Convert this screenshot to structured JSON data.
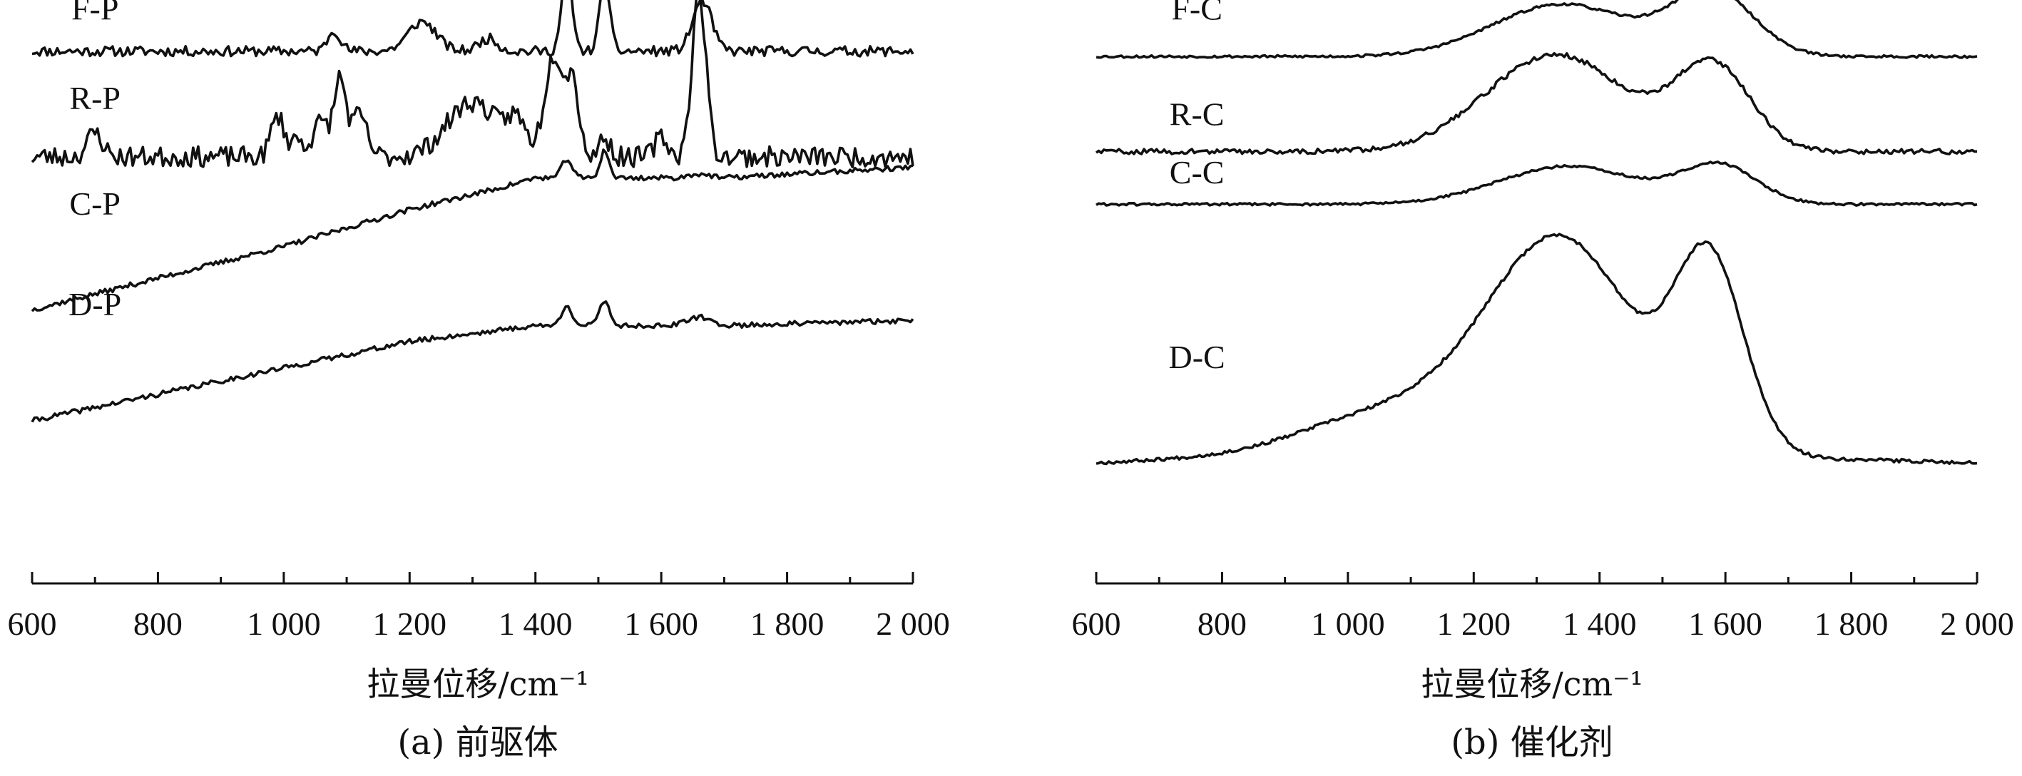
{
  "chart_data": [
    {
      "type": "line",
      "xlabel": "拉曼位移/cm⁻¹",
      "caption": "(a) 前驱体",
      "xlim": [
        600,
        2000
      ],
      "xticks": [
        600,
        800,
        1000,
        1200,
        1400,
        1600,
        1800,
        2000
      ],
      "xtick_labels": [
        "600",
        "800",
        "1 000",
        "1 200",
        "1 400",
        "1 600",
        "1 800",
        "2 000"
      ],
      "y_axis_shown": false,
      "grid": false,
      "series": [
        {
          "name": "F-P",
          "offset": 0.93,
          "scale": 0.16,
          "baseline": [
            [
              600,
              0.0
            ],
            [
              2000,
              0.0
            ]
          ],
          "peaks": [
            [
              1080,
              0.25,
              10
            ],
            [
              1220,
              0.35,
              22
            ],
            [
              1325,
              0.15,
              15
            ],
            [
              1450,
              1.0,
              8
            ],
            [
              1510,
              0.8,
              8
            ],
            [
              1665,
              0.6,
              15
            ]
          ],
          "noise": 0.06,
          "seed": 11
        },
        {
          "name": "R-P",
          "offset": 0.73,
          "scale": 0.13,
          "baseline": [
            [
              600,
              0.0
            ],
            [
              2000,
              0.0
            ]
          ],
          "peaks": [
            [
              700,
              0.35,
              12
            ],
            [
              990,
              0.6,
              10
            ],
            [
              1020,
              0.25,
              10
            ],
            [
              1060,
              0.5,
              14
            ],
            [
              1090,
              1.1,
              9
            ],
            [
              1120,
              0.6,
              12
            ],
            [
              1300,
              0.8,
              40
            ],
            [
              1370,
              0.45,
              15
            ],
            [
              1430,
              1.5,
              15
            ],
            [
              1460,
              1.0,
              10
            ],
            [
              1510,
              0.3,
              8
            ],
            [
              1600,
              0.3,
              10
            ],
            [
              1660,
              2.4,
              11
            ]
          ],
          "noise": 0.15,
          "seed": 23
        },
        {
          "name": "C-P",
          "offset": 0.0,
          "scale": 0.08,
          "baseline": [
            [
              600,
              0.44
            ],
            [
              800,
              0.5
            ],
            [
              1000,
              0.56
            ],
            [
              1200,
              0.63
            ],
            [
              1340,
              0.67
            ],
            [
              1400,
              0.69
            ],
            [
              1700,
              0.69
            ],
            [
              2000,
              0.71
            ]
          ],
          "peaks": [
            [
              1450,
              0.45,
              8
            ],
            [
              1510,
              0.65,
              7
            ],
            [
              1660,
              0.1,
              15
            ]
          ],
          "noise": 0.06,
          "seed": 37
        },
        {
          "name": "D-P",
          "offset": 0.0,
          "scale": 0.08,
          "baseline": [
            [
              600,
              0.23
            ],
            [
              800,
              0.28
            ],
            [
              1000,
              0.33
            ],
            [
              1200,
              0.38
            ],
            [
              1400,
              0.41
            ],
            [
              1700,
              0.41
            ],
            [
              2000,
              0.42
            ]
          ],
          "peaks": [
            [
              1450,
              0.5,
              8
            ],
            [
              1510,
              0.6,
              8
            ],
            [
              1660,
              0.2,
              18
            ]
          ],
          "noise": 0.06,
          "seed": 41
        }
      ],
      "labels": [
        {
          "text": "F-P",
          "x": 700,
          "y": 0.99
        },
        {
          "text": "R-P",
          "x": 700,
          "y": 0.82
        },
        {
          "text": "C-P",
          "x": 700,
          "y": 0.62
        },
        {
          "text": "D-P",
          "x": 700,
          "y": 0.43
        }
      ]
    },
    {
      "type": "line",
      "xlabel": "拉曼位移/cm⁻¹",
      "caption": "(b) 催化剂",
      "xlim": [
        600,
        2000
      ],
      "xticks": [
        600,
        800,
        1000,
        1200,
        1400,
        1600,
        1800,
        2000
      ],
      "xtick_labels": [
        "600",
        "800",
        "1 000",
        "1 200",
        "1 400",
        "1 600",
        "1 800",
        "2 000"
      ],
      "y_axis_shown": false,
      "grid": false,
      "series": [
        {
          "name": "F-C",
          "offset": 0.92,
          "scale": 0.16,
          "baseline": [
            [
              600,
              0.0
            ],
            [
              2000,
              0.0
            ]
          ],
          "peaks": [
            [
              1340,
              0.62,
              110
            ],
            [
              1580,
              0.75,
              65
            ]
          ],
          "noise": 0.015,
          "seed": 53
        },
        {
          "name": "R-C",
          "offset": 0.74,
          "scale": 0.16,
          "baseline": [
            [
              600,
              0.0
            ],
            [
              2000,
              0.0
            ]
          ],
          "peaks": [
            [
              1330,
              1.15,
              110
            ],
            [
              1580,
              1.0,
              60
            ]
          ],
          "noise": 0.03,
          "seed": 59
        },
        {
          "name": "C-C",
          "offset": 0.64,
          "scale": 0.16,
          "baseline": [
            [
              600,
              0.0
            ],
            [
              2000,
              0.0
            ]
          ],
          "peaks": [
            [
              1350,
              0.45,
              110
            ],
            [
              1590,
              0.45,
              60
            ]
          ],
          "noise": 0.015,
          "seed": 61
        },
        {
          "name": "D-C",
          "offset": 0.0,
          "scale": 0.16,
          "baseline": [
            [
              600,
              0.15
            ],
            [
              800,
              0.16
            ],
            [
              950,
              0.17
            ],
            [
              1700,
              0.16
            ],
            [
              2000,
              0.15
            ]
          ],
          "peaks": [
            [
              1340,
              2.5,
              115
            ],
            [
              1575,
              2.2,
              55
            ],
            [
              1090,
              0.5,
              140
            ]
          ],
          "noise": 0.02,
          "seed": 67
        }
      ],
      "labels": [
        {
          "text": "F-C",
          "x": 760,
          "y": 0.99
        },
        {
          "text": "R-C",
          "x": 760,
          "y": 0.79
        },
        {
          "text": "C-C",
          "x": 760,
          "y": 0.68
        },
        {
          "text": "D-C",
          "x": 760,
          "y": 0.33
        }
      ]
    }
  ]
}
